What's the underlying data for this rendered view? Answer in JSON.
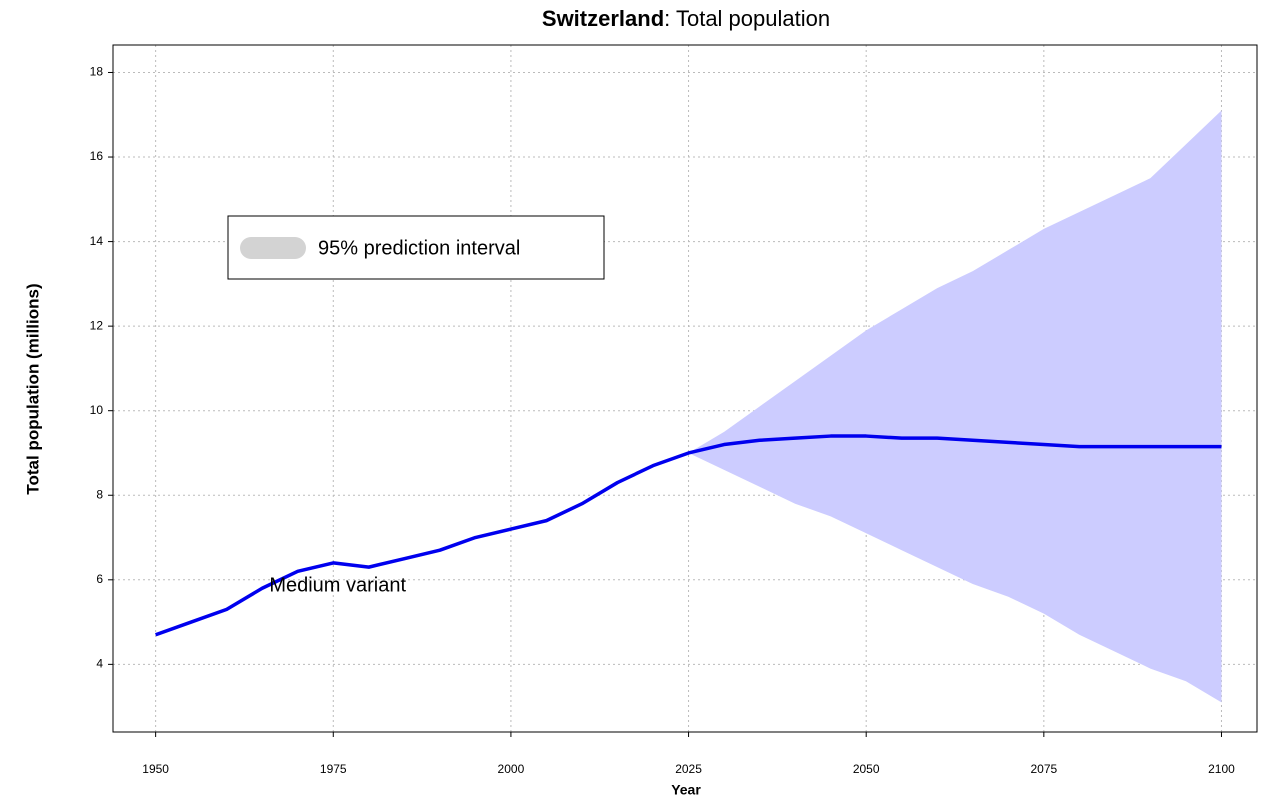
{
  "chart_data": {
    "type": "line",
    "title_bold": "Switzerland",
    "title": ": Total population",
    "xlabel": "Year",
    "ylabel": "Total population (millions)",
    "x": [
      1950,
      1955,
      1960,
      1965,
      1970,
      1975,
      1980,
      1985,
      1990,
      1995,
      2000,
      2005,
      2010,
      2015,
      2020,
      2025,
      2030,
      2035,
      2040,
      2045,
      2050,
      2055,
      2060,
      2065,
      2070,
      2075,
      2080,
      2085,
      2090,
      2095,
      2100
    ],
    "series": [
      {
        "name": "Medium variant",
        "color": "#0000ee",
        "values": [
          4.7,
          5.0,
          5.3,
          5.8,
          6.2,
          6.4,
          6.3,
          6.5,
          6.7,
          7.0,
          7.2,
          7.4,
          7.8,
          8.3,
          8.7,
          9.0,
          9.2,
          9.3,
          9.35,
          9.4,
          9.4,
          9.35,
          9.35,
          9.3,
          9.25,
          9.2,
          9.15,
          9.15,
          9.15,
          9.15,
          9.15
        ]
      }
    ],
    "interval": {
      "name": "95% prediction interval",
      "color": "#ccccff",
      "legend_color": "#d3d3d3",
      "x": [
        2025,
        2030,
        2035,
        2040,
        2045,
        2050,
        2055,
        2060,
        2065,
        2070,
        2075,
        2080,
        2085,
        2090,
        2095,
        2100
      ],
      "lower": [
        9.0,
        8.6,
        8.2,
        7.8,
        7.5,
        7.1,
        6.7,
        6.3,
        5.9,
        5.6,
        5.2,
        4.7,
        4.3,
        3.9,
        3.6,
        3.1
      ],
      "upper": [
        9.0,
        9.5,
        10.1,
        10.7,
        11.3,
        11.9,
        12.4,
        12.9,
        13.3,
        13.8,
        14.3,
        14.7,
        15.1,
        15.5,
        16.3,
        17.1
      ]
    },
    "annotation": {
      "text": "Medium variant",
      "x": 1966,
      "y": 5.85
    },
    "xlim": [
      1944,
      2105
    ],
    "ylim": [
      2.4,
      18.65
    ],
    "xticks": [
      1950,
      1975,
      2000,
      2025,
      2050,
      2075,
      2100
    ],
    "yticks": [
      4,
      6,
      8,
      10,
      12,
      14,
      16,
      18
    ],
    "grid": true
  }
}
